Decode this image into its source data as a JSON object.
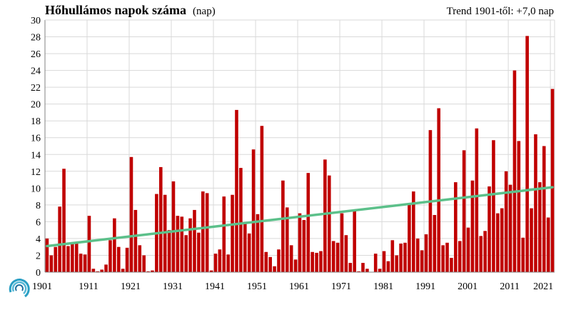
{
  "chart_data": {
    "type": "bar",
    "title": "Hőhullámos napok száma",
    "title_unit": "(nap)",
    "annotation": "Trend 1901-től: +7,0 nap",
    "xlabel": "",
    "ylabel": "",
    "ylim": [
      0,
      30
    ],
    "ytick_step": 2,
    "grid": true,
    "legend": "none",
    "colors": {
      "bar": "#c00000",
      "trend": "#5cc08a",
      "grid": "#d9d9d9",
      "axis": "#808080"
    },
    "x_tick_labels": [
      "1901",
      "1911",
      "1921",
      "1931",
      "1941",
      "1951",
      "1961",
      "1971",
      "1981",
      "1991",
      "2001",
      "2011",
      "2021"
    ],
    "y_tick_labels": [
      "0",
      "2",
      "4",
      "6",
      "8",
      "10",
      "12",
      "14",
      "16",
      "18",
      "20",
      "22",
      "24",
      "26",
      "28",
      "30"
    ],
    "series": [
      {
        "x": [
          1901,
          1902,
          1903,
          1904,
          1905,
          1906,
          1907,
          1908,
          1909,
          1910,
          1911,
          1912,
          1913,
          1914,
          1915,
          1916,
          1917,
          1918,
          1919,
          1920,
          1921,
          1922,
          1923,
          1924,
          1925,
          1926,
          1927,
          1928,
          1929,
          1930,
          1931,
          1932,
          1933,
          1934,
          1935,
          1936,
          1937,
          1938,
          1939,
          1940,
          1941,
          1942,
          1943,
          1944,
          1945,
          1946,
          1947,
          1948,
          1949,
          1950,
          1951,
          1952,
          1953,
          1954,
          1955,
          1956,
          1957,
          1958,
          1959,
          1960,
          1961,
          1962,
          1963,
          1964,
          1965,
          1966,
          1967,
          1968,
          1969,
          1970,
          1971,
          1972,
          1973,
          1974,
          1975,
          1976,
          1977,
          1978,
          1979,
          1980,
          1981,
          1982,
          1983,
          1984,
          1985,
          1986,
          1987,
          1988,
          1989,
          1990,
          1991,
          1992,
          1993,
          1994,
          1995,
          1996,
          1997,
          1998,
          1999,
          2000,
          2001,
          2002,
          2003,
          2004,
          2005,
          2006,
          2007,
          2008,
          2009,
          2010,
          2011,
          2012,
          2013,
          2014,
          2015,
          2016,
          2017,
          2018,
          2019,
          2020,
          2021
        ],
        "values": [
          4,
          2,
          3,
          7.8,
          12.3,
          3.1,
          3.4,
          3.6,
          2.2,
          2.1,
          6.7,
          0.4,
          0.1,
          0.3,
          0.9,
          3.8,
          6.4,
          3,
          0.4,
          2.9,
          13.7,
          7.4,
          3.2,
          2,
          0.1,
          0.2,
          9.3,
          12.5,
          9.2,
          5,
          10.8,
          6.7,
          6.6,
          4.4,
          6.4,
          7.4,
          4.7,
          9.6,
          9.4,
          0.2,
          2.2,
          2.7,
          9,
          2.1,
          9.2,
          19.3,
          12.4,
          5.8,
          4.6,
          14.6,
          6.9,
          17.4,
          2.4,
          1.8,
          0.7,
          2.7,
          10.9,
          7.7,
          3.2,
          1.5,
          7,
          6.2,
          11.8,
          2.4,
          2.3,
          2.5,
          13.4,
          11.5,
          3.7,
          3.5,
          7,
          4.4,
          1.1,
          7.3,
          0.1,
          1.1,
          0.4,
          0,
          2.2,
          0.4,
          2.5,
          1.3,
          3.8,
          2,
          3.4,
          3.5,
          8,
          9.6,
          4,
          2.6,
          4.5,
          16.9,
          6.8,
          19.5,
          3.2,
          3.5,
          1.7,
          10.7,
          3.7,
          14.5,
          5.3,
          10.9,
          17.1,
          4.3,
          4.9,
          10.2,
          15.7,
          7,
          7.6,
          12,
          10.4,
          24,
          15.6,
          4.1,
          28.1,
          7.6,
          16.4,
          10.7,
          15,
          6.5,
          21.8
        ]
      }
    ],
    "trend": {
      "start_year": 1901,
      "start_value": 3.1,
      "end_year": 2021,
      "end_value": 10.1
    }
  }
}
